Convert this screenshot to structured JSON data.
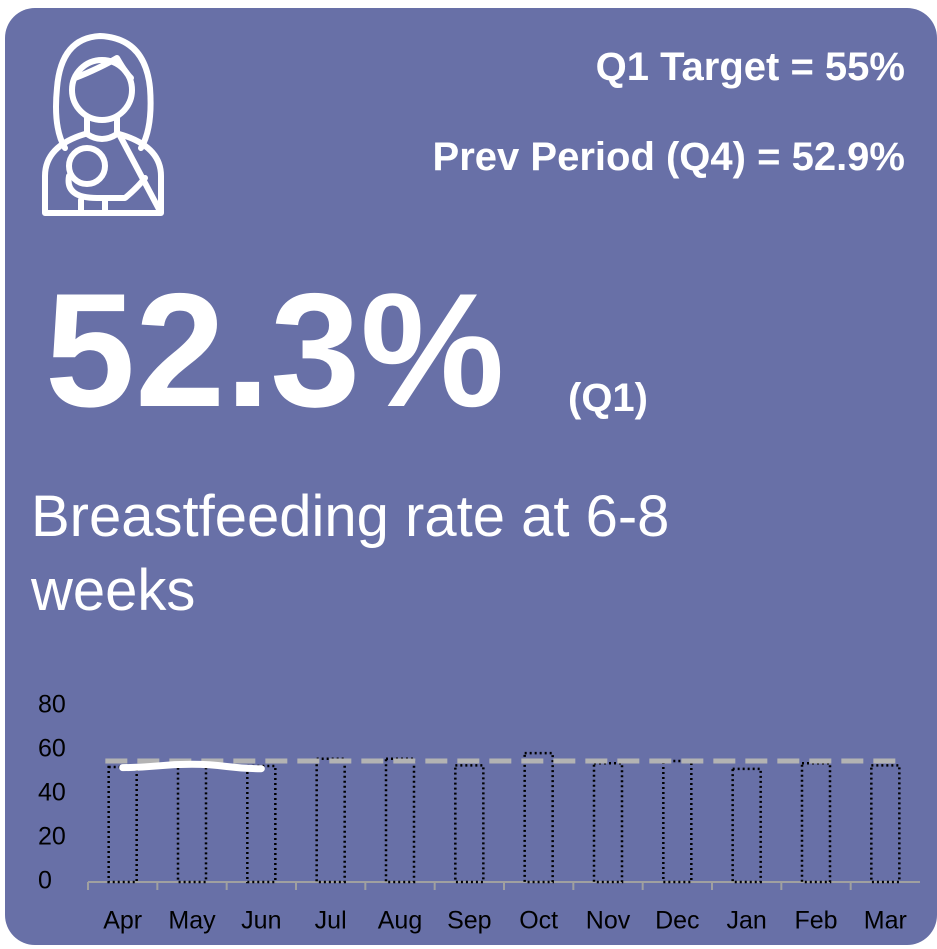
{
  "header": {
    "target": "Q1 Target = 55%",
    "previous": "Prev Period (Q4) = 52.9%"
  },
  "kpi": {
    "value": "52.3%",
    "period": "(Q1)",
    "description": "Breastfeeding rate at 6-8 weeks"
  },
  "chart_data": {
    "type": "bar",
    "categories": [
      "Apr",
      "May",
      "Jun",
      "Jul",
      "Aug",
      "Sep",
      "Oct",
      "Nov",
      "Dec",
      "Jan",
      "Feb",
      "Mar"
    ],
    "values": [
      52.3,
      53,
      52.7,
      56,
      56,
      53,
      58.6,
      54,
      55,
      51.4,
      54,
      53
    ],
    "color": "#000000",
    "line": {
      "color": "#ffffff",
      "values": [
        52,
        53.5,
        51.5,
        null,
        null,
        null,
        null,
        null,
        null,
        null,
        null,
        null
      ]
    },
    "target": {
      "value": 55,
      "color": "#b3b3b3"
    },
    "ylim": [
      0,
      80
    ],
    "yticks": [
      0,
      20,
      40,
      60,
      80
    ]
  }
}
